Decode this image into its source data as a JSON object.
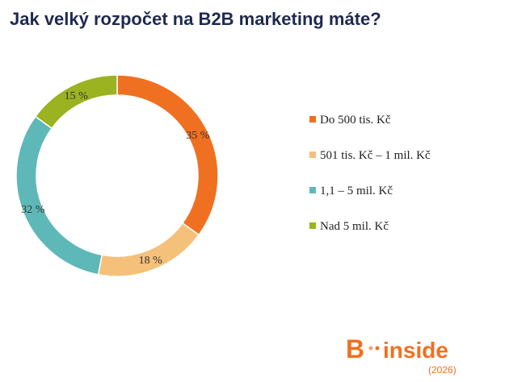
{
  "chart_data": {
    "type": "pie",
    "title": "Jak velký rozpočet na B2B marketing máte?",
    "categories": [
      "Do 500 tis. Kč",
      "501 tis. Kč – 1 mil. Kč",
      "1,1 – 5 mil. Kč",
      "Nad 5 mil. Kč"
    ],
    "values": [
      35,
      18,
      32,
      15
    ],
    "value_labels": [
      "35 %",
      "18 %",
      "32 %",
      "15 %"
    ],
    "colors": [
      "#f07021",
      "#f5c07a",
      "#5fb8b8",
      "#9bb221"
    ]
  },
  "logo": {
    "letter": "B",
    "text": "inside",
    "year": "(2026)"
  }
}
